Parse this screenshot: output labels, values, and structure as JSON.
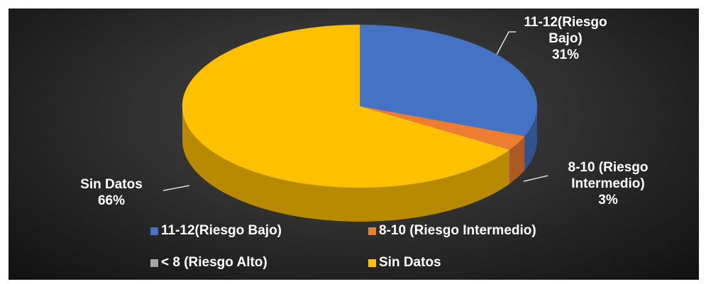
{
  "chart_data": {
    "type": "pie3d",
    "categories": [
      "11-12(Riesgo Bajo)",
      "8-10 (Riesgo Intermedio)",
      "< 8 (Riesgo Alto)",
      "Sin Datos"
    ],
    "values": [
      31,
      3,
      0,
      66
    ],
    "value_labels": [
      "31%",
      "3%",
      null,
      "66%"
    ],
    "colors": [
      "#4472c4",
      "#ed7d31",
      "#a5a5a5",
      "#ffc000"
    ],
    "legend": "bottom"
  }
}
